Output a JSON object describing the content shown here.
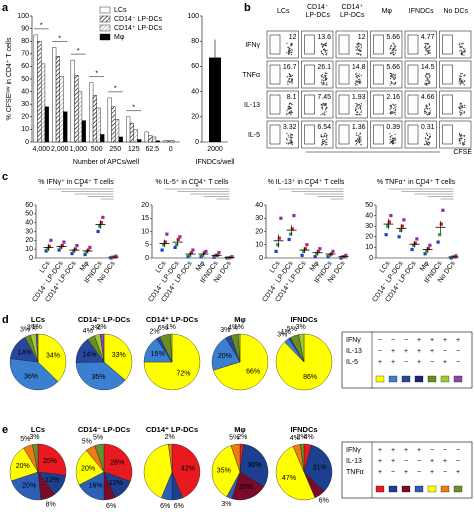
{
  "panel_a": {
    "letter": "a",
    "ylabel": "% CFSEˡᵒʷ in CD4⁺ T cells",
    "xlabel": "Number of APCs/well",
    "categories": [
      "4,000",
      "2,000",
      "1,000",
      "500",
      "250",
      "125",
      "62.5",
      "0"
    ],
    "ylim": [
      0,
      100
    ],
    "yticks": [
      0,
      10,
      20,
      30,
      40,
      50,
      60,
      70,
      80,
      90,
      100
    ],
    "series": [
      {
        "name": "LCs",
        "color": "#ffffff",
        "hatch": null,
        "values": [
          85,
          75,
          65,
          47,
          35,
          20,
          8,
          1
        ]
      },
      {
        "name": "CD14⁻ LP-DCs",
        "color": "#ffffff",
        "hatch": "#000000",
        "values": [
          80,
          68,
          53,
          37,
          28,
          15,
          5,
          1
        ]
      },
      {
        "name": "CD14⁺ LP-DCs",
        "color": "#ffffff",
        "hatch": "#999999",
        "values": [
          62,
          52,
          40,
          27,
          18,
          10,
          4,
          1
        ]
      },
      {
        "name": "Mφ",
        "color": "#000000",
        "hatch": null,
        "values": [
          28,
          24,
          17,
          6,
          4,
          2,
          1,
          0
        ]
      }
    ],
    "stars": [
      "*",
      "*",
      "*",
      "*",
      "*",
      "*"
    ],
    "side": {
      "categories": [
        "2000"
      ],
      "values": [
        67
      ],
      "color": "#000000",
      "ylim": [
        0,
        100
      ],
      "yticks": [
        0,
        20,
        40,
        60,
        80,
        100
      ],
      "xlabel": "IFNDCs/well"
    }
  },
  "panel_b": {
    "letter": "b",
    "columns": [
      [
        "LCs"
      ],
      [
        "CD14⁻",
        "LP-DCs"
      ],
      [
        "CD14⁺",
        "LP-DCs"
      ],
      [
        "Mφ"
      ],
      [
        "IFNDCs"
      ],
      [
        "No DCs"
      ]
    ],
    "rows": [
      "IFNγ",
      "TNFα",
      "IL-13",
      "IL-5"
    ],
    "gates": [
      [
        "12",
        "13.6",
        "12",
        "5.66",
        "4.77",
        null
      ],
      [
        "16.7",
        "26.1",
        "14.8",
        "5.66",
        "14.5",
        null
      ],
      [
        "8.1",
        "7.45",
        "1.93",
        "2.16",
        "4.66",
        null
      ],
      [
        "3.32",
        "6.54",
        "1.36",
        "0.39",
        "0.31",
        null
      ]
    ],
    "xlabel": "CFSE"
  },
  "panel_c": {
    "letter": "c",
    "categories": [
      "LCs",
      "CD14⁻ LP-DCs",
      "CD14⁺ LP-DCs",
      "Mφ",
      "IFNDCs",
      "No DCs"
    ],
    "donor_colors": [
      "#1f3fbf",
      "#2e9e3e",
      "#d42020",
      "#8e2fa8"
    ],
    "plots": [
      {
        "title": "% IFNγ⁺ in CD4⁺ T cells",
        "ylim": [
          0,
          60
        ],
        "yticks": [
          0,
          10,
          20,
          30,
          40,
          50,
          60
        ],
        "means": [
          12,
          13,
          9,
          8,
          38,
          1
        ],
        "sems": [
          4,
          3,
          3,
          2,
          5,
          0.5
        ],
        "points": [
          [
            8,
            10,
            13,
            20
          ],
          [
            9,
            12,
            14,
            18
          ],
          [
            5,
            8,
            10,
            14
          ],
          [
            4,
            7,
            9,
            12
          ],
          [
            30,
            36,
            40,
            46
          ],
          [
            0,
            1,
            1,
            2
          ]
        ],
        "stars": [
          "*"
        ]
      },
      {
        "title": "% IL-5⁺ in CD4⁺ T cells",
        "ylim": [
          0,
          20
        ],
        "yticks": [
          0,
          5,
          10,
          15,
          20
        ],
        "means": [
          5.5,
          6,
          1.5,
          1.5,
          1,
          0.2
        ],
        "sems": [
          1.5,
          1.2,
          0.5,
          0.5,
          0.3,
          0.1
        ],
        "points": [
          [
            3,
            5,
            6,
            9
          ],
          [
            4,
            5,
            7,
            8
          ],
          [
            0.5,
            1,
            2,
            3
          ],
          [
            0.5,
            1,
            2,
            2.5
          ],
          [
            0.3,
            1,
            1,
            2
          ],
          [
            0,
            0,
            0.2,
            0.5
          ]
        ],
        "stars": [
          "*"
        ]
      },
      {
        "title": "% IL-13⁺ in CD4⁺ T cells",
        "ylim": [
          0,
          40
        ],
        "yticks": [
          0,
          10,
          20,
          30,
          40
        ],
        "means": [
          13,
          21,
          6,
          4,
          3,
          1
        ],
        "sems": [
          5,
          4,
          2,
          1.5,
          1,
          0.3
        ],
        "points": [
          [
            5,
            10,
            15,
            30
          ],
          [
            14,
            18,
            22,
            32
          ],
          [
            2,
            5,
            7,
            10
          ],
          [
            1,
            3,
            5,
            7
          ],
          [
            1,
            2,
            3,
            5
          ],
          [
            0,
            1,
            1,
            2
          ]
        ],
        "stars": [
          "*"
        ]
      },
      {
        "title": "% TNFα⁺ in CD4⁺ T cells",
        "ylim": [
          0,
          50
        ],
        "yticks": [
          0,
          10,
          20,
          30,
          40,
          50
        ],
        "means": [
          32,
          28,
          13,
          8,
          29,
          1
        ],
        "sems": [
          5,
          4,
          3,
          2,
          6,
          0.5
        ],
        "points": [
          [
            22,
            30,
            34,
            40
          ],
          [
            20,
            26,
            30,
            36
          ],
          [
            8,
            12,
            14,
            18
          ],
          [
            4,
            6,
            9,
            12
          ],
          [
            15,
            22,
            32,
            45
          ],
          [
            0,
            1,
            1,
            2
          ]
        ],
        "stars": [
          "*"
        ]
      }
    ]
  },
  "panel_d": {
    "letter": "d",
    "colors": [
      "#ffff00",
      "#3a7fd0",
      "#2846a0",
      "#1a237e",
      "#6b8e23",
      "#9acd32",
      "#8e44ad"
    ],
    "pies": [
      {
        "title": "LCs",
        "values": [
          34,
          36,
          14,
          0,
          3,
          3,
          1
        ],
        "value_labels": [
          "34%",
          "36%",
          "14%",
          null,
          "3%",
          "3%",
          "1%"
        ]
      },
      {
        "title": "CD14⁻ LP-DCs",
        "values": [
          33,
          35,
          14,
          0,
          4,
          3,
          2
        ],
        "value_labels": [
          "33%",
          "35%",
          "14%",
          null,
          "4%",
          "3%",
          "2%"
        ]
      },
      {
        "title": "CD14⁺ LP-DCs",
        "values": [
          72,
          15,
          2,
          0,
          6,
          1,
          0
        ],
        "value_labels": [
          "72%",
          "15%",
          "2%",
          null,
          "6%",
          "1%",
          null
        ]
      },
      {
        "title": "Mφ",
        "values": [
          66,
          20,
          3,
          0,
          4,
          1,
          0
        ],
        "value_labels": [
          "66%",
          "20%",
          "3%",
          null,
          "4%",
          "1%",
          null
        ]
      },
      {
        "title": "IFNDCs",
        "values": [
          86,
          3,
          1,
          0,
          5,
          3,
          0
        ],
        "value_labels": [
          "86%",
          "3%",
          "1%",
          null,
          "5%",
          "3%",
          null
        ]
      }
    ],
    "legend": [
      {
        "name": "IFNγ",
        "signs": [
          "−",
          "−",
          "−",
          "+",
          "+",
          "+",
          "+"
        ]
      },
      {
        "name": "IL-13",
        "signs": [
          "−",
          "+",
          "+",
          "+",
          "+",
          "−",
          "−"
        ]
      },
      {
        "name": "IL-5",
        "signs": [
          "+",
          "+",
          "−",
          "+",
          "−",
          "+",
          "−"
        ]
      }
    ]
  },
  "panel_e": {
    "letter": "e",
    "colors": [
      "#e8191f",
      "#1d3f8f",
      "#7a0a2a",
      "#2b5fb8",
      "#ffff00",
      "#f07b16",
      "#6a8f2c"
    ],
    "pies": [
      {
        "title": "LCs",
        "values": [
          25,
          12,
          8,
          20,
          20,
          5,
          3
        ],
        "value_labels": [
          "25%",
          "12%",
          "8%",
          "20%",
          "20%",
          "5%",
          "3%"
        ]
      },
      {
        "title": "CD14⁻ LP-DCs",
        "values": [
          28,
          12,
          6,
          16,
          20,
          5,
          5
        ],
        "value_labels": [
          "28%",
          "12%",
          "6%",
          "16%",
          "20%",
          "5%",
          "5%"
        ]
      },
      {
        "title": "CD14⁺ LP-DCs",
        "values": [
          42,
          6,
          0,
          6,
          40,
          2,
          0
        ],
        "value_labels": [
          "42%",
          "6%",
          null,
          "6%",
          null,
          "2%",
          null
        ]
      },
      {
        "title": "Mφ",
        "values": [
          2,
          30,
          20,
          3,
          35,
          5,
          0
        ],
        "value_labels": [
          "2%",
          "30%",
          "20%",
          "3%",
          "35%",
          "5%",
          null
        ]
      },
      {
        "title": "IFNDCs",
        "values": [
          4,
          31,
          6,
          0,
          47,
          4,
          2
        ],
        "value_labels": [
          "4%",
          "31%",
          "6%",
          null,
          "47%",
          "4%",
          "2%"
        ]
      }
    ],
    "legend": [
      {
        "name": "IFNγ",
        "signs": [
          "+",
          "+",
          "+",
          "+",
          "−",
          "−",
          "−"
        ]
      },
      {
        "name": "IL-13",
        "signs": [
          "+",
          "+",
          "−",
          "−",
          "+",
          "+",
          "−"
        ]
      },
      {
        "name": "TNFα",
        "signs": [
          "+",
          "−",
          "+",
          "−",
          "+",
          "−",
          "+"
        ]
      }
    ]
  }
}
